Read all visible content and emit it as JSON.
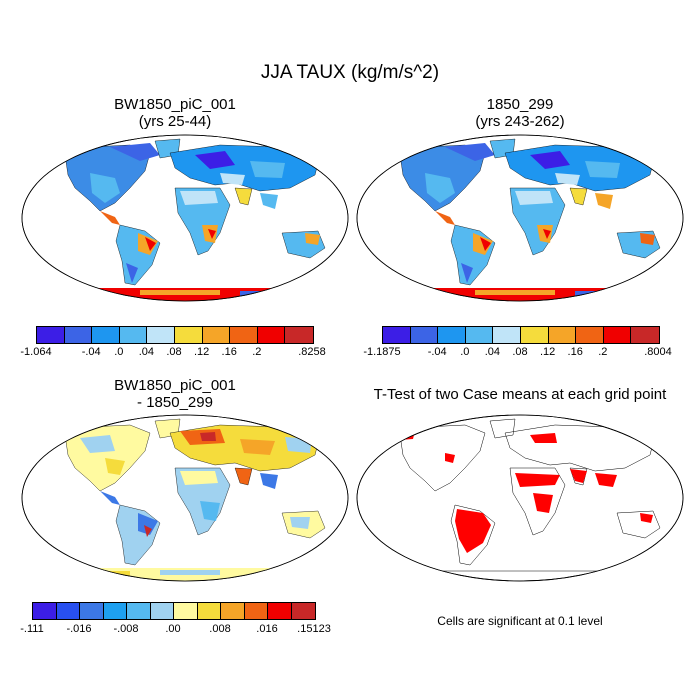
{
  "title": "JJA TAUX (kg/m/s^2)",
  "panels": [
    {
      "title_line1": "BW1850_piC_001",
      "title_line2": "(yrs 25-44)",
      "colorbar": {
        "colors": [
          "#3c1ee6",
          "#3c64e6",
          "#1e96f0",
          "#55b9f0",
          "#c0e4f8",
          "#f5dc3c",
          "#f5a528",
          "#f06414",
          "#f00000",
          "#c82828"
        ],
        "tick_labels": [
          "-1.064",
          "-.04",
          ".0",
          ".04",
          ".08",
          ".12",
          ".16",
          ".2",
          ".8258"
        ]
      }
    },
    {
      "title_line1": "1850_299",
      "title_line2": "(yrs 243-262)",
      "colorbar": {
        "colors": [
          "#3c1ee6",
          "#3c64e6",
          "#1e96f0",
          "#55b9f0",
          "#c0e4f8",
          "#f5dc3c",
          "#f5a528",
          "#f06414",
          "#f00000",
          "#c82828"
        ],
        "tick_labels": [
          "-1.1875",
          "-.04",
          ".0",
          ".04",
          ".08",
          ".12",
          ".16",
          ".2",
          ".8004"
        ]
      }
    },
    {
      "title_line1": "BW1850_piC_001",
      "title_line2": "- 1850_299",
      "colorbar": {
        "colors": [
          "#3c1ee6",
          "#2850f0",
          "#3c78e6",
          "#1ea0f0",
          "#55b9f0",
          "#a0d2f0",
          "#fffaa0",
          "#f5dc3c",
          "#f5a528",
          "#f06414",
          "#f00000",
          "#c82828"
        ],
        "tick_labels": [
          "-.111",
          "-.016",
          "-.008",
          ".00",
          ".008",
          ".016",
          ".15123"
        ]
      }
    },
    {
      "title_line1": "T-Test of two Case means at each grid point",
      "title_line2": "",
      "note": "Cells are significant at 0.1 level",
      "significance_color": "#ff0000"
    }
  ]
}
